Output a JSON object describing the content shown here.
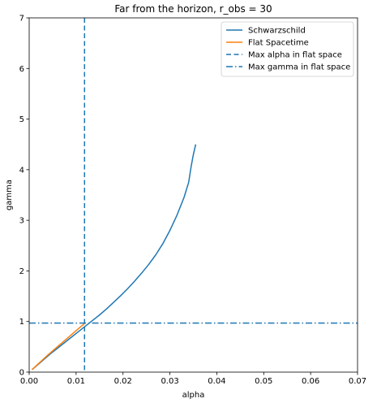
{
  "chart_data": {
    "type": "line",
    "title": "Far from the horizon, r_obs = 30",
    "xlabel": "alpha",
    "ylabel": "gamma",
    "xlim": [
      0,
      0.07
    ],
    "ylim": [
      0,
      7
    ],
    "xticks": [
      "0.00",
      "0.01",
      "0.02",
      "0.03",
      "0.04",
      "0.05",
      "0.06",
      "0.07"
    ],
    "yticks": [
      "0",
      "1",
      "2",
      "3",
      "4",
      "5",
      "6",
      "7"
    ],
    "xtick_values": [
      0,
      0.01,
      0.02,
      0.03,
      0.04,
      0.05,
      0.06,
      0.07
    ],
    "ytick_values": [
      0,
      1,
      2,
      3,
      4,
      5,
      6,
      7
    ],
    "grid": false,
    "legend_position": "top-right",
    "series": [
      {
        "name": "Schwarzschild",
        "style": "solid",
        "color": "#1f77b4",
        "x": [
          0.0006,
          0.0015,
          0.003,
          0.0045,
          0.006,
          0.0075,
          0.009,
          0.0105,
          0.012,
          0.0135,
          0.015,
          0.0165,
          0.018,
          0.0195,
          0.021,
          0.0225,
          0.024,
          0.0255,
          0.027,
          0.0285,
          0.03,
          0.0315,
          0.033,
          0.034,
          0.0345,
          0.035,
          0.0355
        ],
        "y": [
          0.05,
          0.12,
          0.24,
          0.36,
          0.47,
          0.58,
          0.69,
          0.8,
          0.91,
          1.02,
          1.13,
          1.25,
          1.38,
          1.51,
          1.65,
          1.8,
          1.96,
          2.13,
          2.32,
          2.54,
          2.8,
          3.1,
          3.45,
          3.75,
          4.05,
          4.3,
          4.5
        ]
      },
      {
        "name": "Flat Spacetime",
        "style": "solid",
        "color": "#ff7f0e",
        "x": [
          0.0006,
          0.002,
          0.004,
          0.006,
          0.008,
          0.01,
          0.0118
        ],
        "y": [
          0.05,
          0.17,
          0.34,
          0.5,
          0.66,
          0.82,
          0.96
        ]
      },
      {
        "name": "Max alpha in flat space",
        "style": "dashed",
        "color": "#1f77b4",
        "orientation": "vertical",
        "value": 0.0118
      },
      {
        "name": "Max gamma in flat space",
        "style": "dashdot",
        "color": "#1f77b4",
        "orientation": "horizontal",
        "value": 0.97
      }
    ]
  }
}
